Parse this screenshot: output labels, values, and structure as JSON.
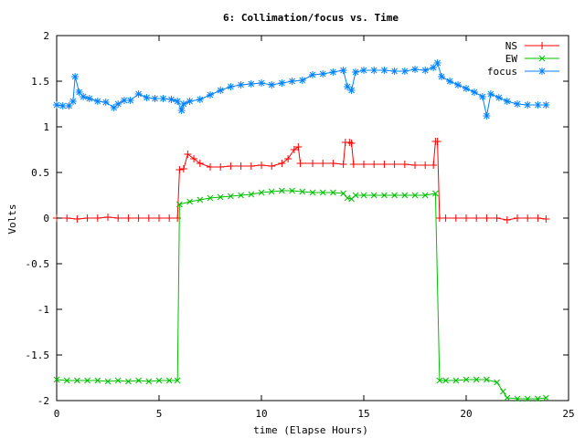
{
  "chart_data": {
    "type": "line",
    "title": "6: Collimation/focus vs. Time",
    "xlabel": "time (Elapse Hours)",
    "ylabel": "Volts",
    "xlim": [
      0,
      25
    ],
    "ylim": [
      -2,
      2
    ],
    "xticks": [
      0,
      5,
      10,
      15,
      20,
      25
    ],
    "xtick_labels": [
      "0",
      "5",
      "10",
      "15",
      "20",
      "25"
    ],
    "yticks": [
      -2,
      -1.5,
      -1,
      -0.5,
      0,
      0.5,
      1,
      1.5,
      2
    ],
    "ytick_labels": [
      "-2",
      "-1.5",
      "-1",
      "-0.5",
      "0",
      "0.5",
      "1",
      "1.5",
      "2"
    ],
    "grid": false,
    "legend_position": "top-right",
    "series": [
      {
        "name": "NS",
        "color": "#ff0000",
        "marker": "plus",
        "x": [
          0,
          0.5,
          1,
          1.5,
          2,
          2.5,
          3,
          3.5,
          4,
          4.5,
          5,
          5.5,
          5.9,
          6.0,
          6.2,
          6.4,
          6.7,
          7.0,
          7.5,
          8.0,
          8.5,
          9.0,
          9.5,
          10.0,
          10.5,
          11.0,
          11.3,
          11.6,
          11.8,
          11.9,
          12.5,
          13.0,
          13.5,
          14.0,
          14.1,
          14.3,
          14.4,
          14.5,
          15.0,
          15.5,
          16.0,
          16.5,
          17.0,
          17.5,
          18.0,
          18.4,
          18.5,
          18.6,
          18.7,
          19.0,
          19.5,
          20.0,
          20.5,
          21.0,
          21.5,
          22.0,
          22.5,
          23.0,
          23.5,
          23.9
        ],
        "y": [
          0.0,
          0.0,
          -0.01,
          0.0,
          0.0,
          0.01,
          0.0,
          0.0,
          0.0,
          0.0,
          0.0,
          0.0,
          0.0,
          0.53,
          0.54,
          0.7,
          0.65,
          0.6,
          0.56,
          0.56,
          0.57,
          0.57,
          0.57,
          0.58,
          0.57,
          0.6,
          0.65,
          0.75,
          0.78,
          0.6,
          0.6,
          0.6,
          0.6,
          0.59,
          0.83,
          0.83,
          0.82,
          0.59,
          0.59,
          0.59,
          0.59,
          0.59,
          0.59,
          0.58,
          0.58,
          0.58,
          0.84,
          0.84,
          0.0,
          0.0,
          0.0,
          0.0,
          0.0,
          0.0,
          0.0,
          -0.02,
          0.0,
          0.0,
          0.0,
          -0.01
        ]
      },
      {
        "name": "EW",
        "color": "#00c000",
        "marker": "cross",
        "x": [
          0,
          0.5,
          1,
          1.5,
          2,
          2.5,
          3,
          3.5,
          4,
          4.5,
          5,
          5.5,
          5.9,
          6.0,
          6.5,
          7.0,
          7.5,
          8.0,
          8.5,
          9.0,
          9.5,
          10.0,
          10.5,
          11.0,
          11.5,
          12.0,
          12.5,
          13.0,
          13.5,
          14.0,
          14.2,
          14.4,
          14.6,
          15.0,
          15.5,
          16.0,
          16.5,
          17.0,
          17.5,
          18.0,
          18.5,
          18.7,
          19.0,
          19.5,
          20.0,
          20.5,
          21.0,
          21.5,
          21.8,
          22.0,
          22.5,
          23.0,
          23.5,
          23.9
        ],
        "y": [
          -1.77,
          -1.78,
          -1.78,
          -1.78,
          -1.78,
          -1.79,
          -1.78,
          -1.79,
          -1.78,
          -1.79,
          -1.78,
          -1.78,
          -1.78,
          0.15,
          0.18,
          0.2,
          0.22,
          0.23,
          0.24,
          0.25,
          0.26,
          0.28,
          0.29,
          0.3,
          0.3,
          0.29,
          0.28,
          0.28,
          0.28,
          0.27,
          0.22,
          0.21,
          0.25,
          0.25,
          0.25,
          0.25,
          0.25,
          0.25,
          0.25,
          0.25,
          0.27,
          -1.78,
          -1.78,
          -1.78,
          -1.77,
          -1.77,
          -1.77,
          -1.8,
          -1.9,
          -1.97,
          -1.98,
          -1.98,
          -1.98,
          -1.97
        ]
      },
      {
        "name": "focus",
        "color": "#0080ff",
        "marker": "star",
        "x": [
          0,
          0.3,
          0.6,
          0.8,
          0.9,
          1.1,
          1.3,
          1.6,
          2.0,
          2.4,
          2.8,
          3.0,
          3.3,
          3.6,
          4.0,
          4.4,
          4.8,
          5.2,
          5.6,
          5.9,
          6.1,
          6.2,
          6.5,
          7.0,
          7.5,
          8.0,
          8.5,
          9.0,
          9.5,
          10.0,
          10.5,
          11.0,
          11.5,
          12.0,
          12.5,
          13.0,
          13.5,
          14.0,
          14.2,
          14.4,
          14.6,
          15.0,
          15.5,
          16.0,
          16.5,
          17.0,
          17.5,
          18.0,
          18.4,
          18.6,
          18.8,
          19.2,
          19.6,
          20.0,
          20.4,
          20.8,
          21.0,
          21.2,
          21.6,
          22.0,
          22.5,
          23.0,
          23.5,
          23.9
        ],
        "y": [
          1.24,
          1.23,
          1.23,
          1.28,
          1.55,
          1.38,
          1.33,
          1.31,
          1.28,
          1.27,
          1.21,
          1.25,
          1.29,
          1.29,
          1.36,
          1.32,
          1.31,
          1.31,
          1.3,
          1.28,
          1.18,
          1.25,
          1.28,
          1.3,
          1.35,
          1.4,
          1.44,
          1.46,
          1.47,
          1.48,
          1.46,
          1.48,
          1.5,
          1.51,
          1.57,
          1.58,
          1.6,
          1.62,
          1.44,
          1.4,
          1.6,
          1.62,
          1.62,
          1.62,
          1.61,
          1.61,
          1.63,
          1.62,
          1.65,
          1.7,
          1.55,
          1.5,
          1.46,
          1.42,
          1.38,
          1.33,
          1.12,
          1.36,
          1.32,
          1.28,
          1.25,
          1.24,
          1.24,
          1.24
        ]
      }
    ]
  }
}
